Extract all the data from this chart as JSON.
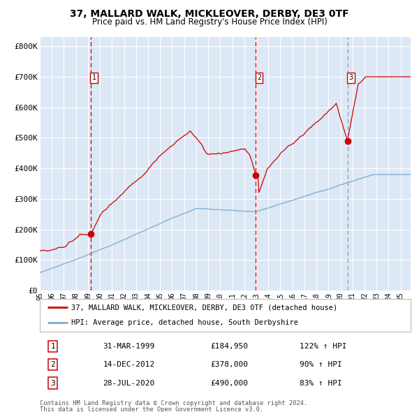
{
  "title": "37, MALLARD WALK, MICKLEOVER, DERBY, DE3 0TF",
  "subtitle": "Price paid vs. HM Land Registry's House Price Index (HPI)",
  "ylabel_ticks": [
    "£0",
    "£100K",
    "£200K",
    "£300K",
    "£400K",
    "£500K",
    "£600K",
    "£700K",
    "£800K"
  ],
  "ytick_vals": [
    0,
    100000,
    200000,
    300000,
    400000,
    500000,
    600000,
    700000,
    800000
  ],
  "ylim": [
    0,
    830000
  ],
  "xlim_start": 1995.0,
  "xlim_end": 2025.83,
  "sale1_date": 1999.25,
  "sale1_price": 184950,
  "sale1_label": "1",
  "sale1_display": "31-MAR-1999",
  "sale1_pct": "122% ↑ HPI",
  "sale2_date": 2012.96,
  "sale2_price": 378000,
  "sale2_label": "2",
  "sale2_display": "14-DEC-2012",
  "sale2_pct": "90% ↑ HPI",
  "sale3_date": 2020.58,
  "sale3_price": 490000,
  "sale3_label": "3",
  "sale3_display": "28-JUL-2020",
  "sale3_pct": "83% ↑ HPI",
  "red_line_color": "#cc0000",
  "blue_line_color": "#7aaad0",
  "bg_color": "#dce8f5",
  "grid_color": "#ffffff",
  "vline_color_12": "#cc0000",
  "vline_color_3": "#999999",
  "legend_label_red": "37, MALLARD WALK, MICKLEOVER, DERBY, DE3 0TF (detached house)",
  "legend_label_blue": "HPI: Average price, detached house, South Derbyshire",
  "footer1": "Contains HM Land Registry data © Crown copyright and database right 2024.",
  "footer2": "This data is licensed under the Open Government Licence v3.0."
}
